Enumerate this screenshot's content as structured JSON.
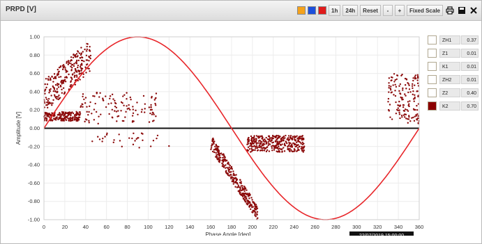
{
  "window": {
    "title": "PRPD [V]"
  },
  "toolbar": {
    "color_buttons": [
      {
        "name": "orange",
        "color": "#f5a21b"
      },
      {
        "name": "blue",
        "color": "#1b4fdc"
      },
      {
        "name": "red",
        "color": "#e01b1b"
      }
    ],
    "btn_1h": "1h",
    "btn_24h": "24h",
    "btn_reset": "Reset",
    "btn_minus": "-",
    "btn_plus": "+",
    "btn_fixed_scale": "Fixed Scale",
    "icons": [
      "print-icon",
      "save-icon",
      "close-icon"
    ]
  },
  "timestamp": "22/07/2019 15:00:00",
  "legend": [
    {
      "name": "ZH1",
      "value": "0.37",
      "color": "#ffffff"
    },
    {
      "name": "Z1",
      "value": "0.01",
      "color": "#ffffff"
    },
    {
      "name": "K1",
      "value": "0.01",
      "color": "#ffffff"
    },
    {
      "name": "ZH2",
      "value": "0.01",
      "color": "#ffffff"
    },
    {
      "name": "Z2",
      "value": "0.40",
      "color": "#ffffff"
    },
    {
      "name": "K2",
      "value": "0.70",
      "color": "#8b0000"
    }
  ],
  "chart_data": {
    "type": "scatter",
    "xlabel": "Phase Angle [deg]",
    "ylabel": "Amplitude [V]",
    "xlim": [
      0,
      360
    ],
    "ylim": [
      -1.0,
      1.0
    ],
    "xticks": [
      "0",
      "20",
      "40",
      "60",
      "80",
      "100",
      "120",
      "140",
      "160",
      "180",
      "200",
      "220",
      "240",
      "260",
      "280",
      "300",
      "320",
      "340",
      "360"
    ],
    "yticks": [
      "1.00",
      "0.80",
      "0.60",
      "0.40",
      "0.20",
      "0.00",
      "-0.20",
      "-0.40",
      "-0.60",
      "-0.80",
      "-1.00"
    ],
    "grid": true,
    "sine_reference": {
      "amplitude": 1.0,
      "period_deg": 360,
      "color": "#e8262a"
    },
    "zero_line": true,
    "point_color": "#8b0a0a",
    "clusters": [
      {
        "x_range": [
          0,
          45
        ],
        "y_range": [
          0.2,
          1.0
        ],
        "count": 260,
        "note": "positive lobe"
      },
      {
        "x_range": [
          0,
          35
        ],
        "y_range": [
          0.08,
          0.18
        ],
        "count": 200,
        "note": "dense band"
      },
      {
        "x_range": [
          35,
          110
        ],
        "y_range": [
          0.05,
          0.4
        ],
        "count": 120
      },
      {
        "x_range": [
          160,
          205
        ],
        "y_range": [
          -0.98,
          -0.1
        ],
        "count": 300,
        "note": "negative diagonal"
      },
      {
        "x_range": [
          195,
          250
        ],
        "y_range": [
          -0.26,
          -0.08
        ],
        "count": 350,
        "note": "dense band"
      },
      {
        "x_range": [
          330,
          360
        ],
        "y_range": [
          0.05,
          0.6
        ],
        "count": 150
      },
      {
        "x_range": [
          40,
          120
        ],
        "y_range": [
          -0.22,
          -0.05
        ],
        "count": 30
      }
    ]
  }
}
